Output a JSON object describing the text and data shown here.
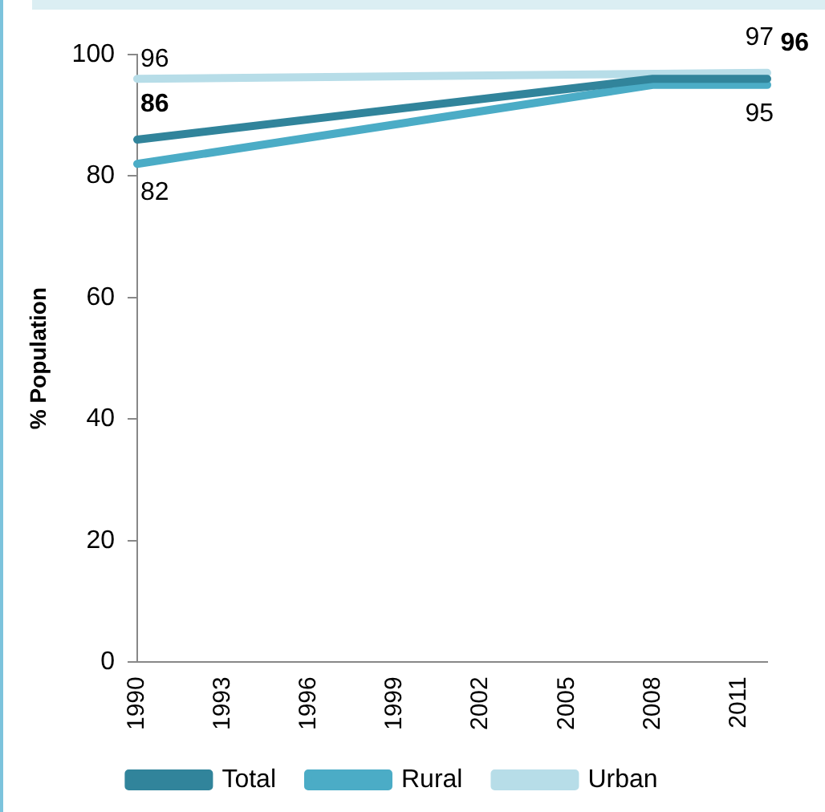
{
  "chart_data": {
    "type": "line",
    "ylabel": "% Population",
    "categories": [
      "1990",
      null,
      null,
      "1993",
      null,
      null,
      "1996",
      null,
      null,
      "1999",
      null,
      null,
      "2002",
      null,
      null,
      "2005",
      null,
      null,
      "2008",
      null,
      null,
      "2011",
      null
    ],
    "series": [
      {
        "name": "Total",
        "color": "#31849b",
        "values": [
          86,
          null,
          null,
          null,
          null,
          null,
          null,
          null,
          null,
          null,
          null,
          null,
          null,
          null,
          null,
          null,
          null,
          null,
          96,
          null,
          null,
          null,
          96
        ],
        "value_labels": [
          "86",
          null,
          null,
          null,
          null,
          null,
          null,
          null,
          null,
          null,
          null,
          null,
          null,
          null,
          null,
          null,
          null,
          null,
          null,
          null,
          null,
          null,
          "96"
        ]
      },
      {
        "name": "Rural",
        "color": "#4bacc6",
        "values": [
          82,
          null,
          null,
          null,
          null,
          null,
          null,
          null,
          null,
          null,
          null,
          null,
          null,
          null,
          null,
          null,
          null,
          null,
          95,
          null,
          null,
          null,
          95
        ],
        "value_labels": [
          "82",
          null,
          null,
          null,
          null,
          null,
          null,
          null,
          null,
          null,
          null,
          null,
          null,
          null,
          null,
          null,
          null,
          null,
          null,
          null,
          null,
          null,
          "95"
        ]
      },
      {
        "name": "Urban",
        "color": "#b7dde8",
        "values": [
          96,
          null,
          null,
          null,
          null,
          null,
          null,
          null,
          null,
          null,
          null,
          null,
          null,
          null,
          null,
          null,
          null,
          null,
          null,
          null,
          null,
          null,
          97
        ],
        "value_labels": [
          "96",
          null,
          null,
          null,
          null,
          null,
          null,
          null,
          null,
          null,
          null,
          null,
          null,
          null,
          null,
          null,
          null,
          null,
          null,
          null,
          null,
          null,
          "97"
        ]
      }
    ],
    "ylim": [
      0,
      100
    ],
    "yticks": [
      0,
      20,
      40,
      60,
      80,
      100
    ],
    "grid": false,
    "legend": "bottom",
    "marker": "none",
    "line_style": "solid"
  }
}
